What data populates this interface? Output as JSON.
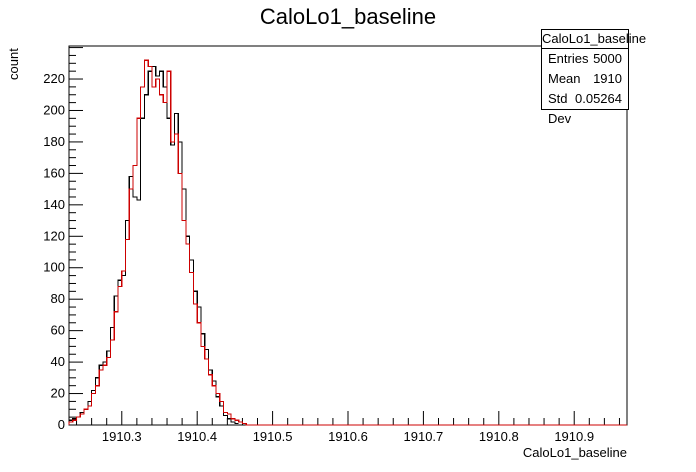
{
  "chart_data": {
    "type": "histogram",
    "title": "CaloLo1_baseline",
    "xlabel": "CaloLo1_baseline",
    "ylabel": "count",
    "xlim": [
      1910.23,
      1910.97
    ],
    "ylim": [
      0,
      241
    ],
    "xticks": [
      "1910.3",
      "1910.4",
      "1910.5",
      "1910.6",
      "1910.7",
      "1910.8",
      "1910.9"
    ],
    "yticks": [
      "0",
      "20",
      "40",
      "60",
      "80",
      "100",
      "120",
      "140",
      "160",
      "180",
      "200",
      "220"
    ],
    "grid": false,
    "bin_start": 1910.23,
    "bin_width": 0.005,
    "series": [
      {
        "color": "#000000",
        "values": [
          3,
          4,
          5,
          8,
          10,
          15,
          22,
          30,
          38,
          40,
          47,
          62,
          82,
          92,
          95,
          130,
          158,
          145,
          143,
          195,
          210,
          225,
          228,
          222,
          225,
          215,
          195,
          178,
          198,
          180,
          150,
          120,
          105,
          85,
          75,
          58,
          48,
          35,
          28,
          18,
          12,
          6,
          4,
          2,
          1
        ]
      },
      {
        "color": "#cc0000",
        "values": [
          2,
          3,
          5,
          7,
          10,
          12,
          20,
          25,
          35,
          38,
          43,
          54,
          72,
          88,
          98,
          118,
          150,
          165,
          195,
          215,
          232,
          228,
          215,
          220,
          210,
          205,
          225,
          180,
          185,
          160,
          130,
          115,
          97,
          77,
          65,
          50,
          42,
          32,
          25,
          20,
          15,
          8,
          7,
          4,
          3,
          2,
          1,
          0,
          0,
          0,
          0,
          0,
          0,
          0,
          0,
          0,
          0,
          0,
          0,
          0,
          0,
          0,
          0,
          0,
          0,
          0,
          0,
          0,
          0,
          0,
          0,
          0,
          0,
          0,
          0,
          0,
          0,
          0,
          0,
          0,
          0,
          0,
          0,
          0,
          0,
          0,
          0,
          0,
          0,
          0,
          0,
          0,
          0,
          0,
          0,
          0,
          0,
          0,
          0,
          0,
          0,
          0,
          0,
          0,
          0,
          0,
          0,
          0,
          0,
          0,
          0,
          0,
          0,
          0,
          0,
          0,
          0,
          0,
          0,
          0,
          0,
          0,
          0,
          0,
          0,
          0,
          0,
          0,
          0,
          0,
          0,
          0,
          0,
          0,
          0,
          0,
          0,
          0,
          0,
          0,
          0,
          0,
          0,
          0,
          0,
          0,
          0,
          0
        ]
      }
    ]
  },
  "stats_box": {
    "title": "CaloLo1_baseline",
    "rows": [
      {
        "label": "Entries",
        "value": "5000"
      },
      {
        "label": "Mean",
        "value": "1910"
      },
      {
        "label": "Std Dev",
        "value": "0.05264"
      }
    ]
  }
}
